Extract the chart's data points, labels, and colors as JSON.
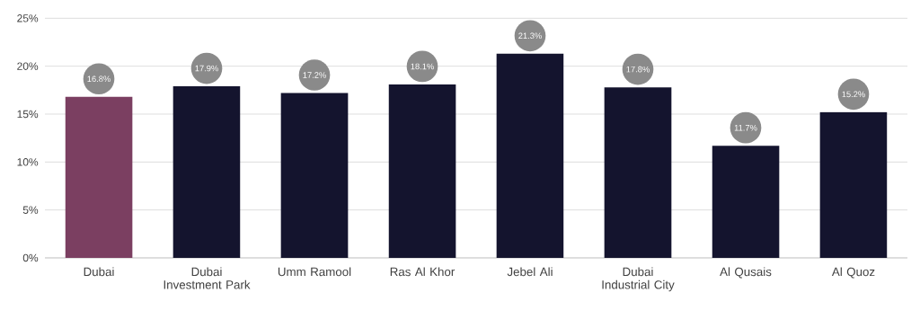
{
  "chart_data": {
    "type": "bar",
    "categories": [
      "Dubai",
      "Dubai Investment Park",
      "Umm Ramool",
      "Ras Al Khor",
      "Jebel Ali",
      "Dubai Industrial City",
      "Al Qusais",
      "Al Quoz"
    ],
    "values": [
      16.8,
      17.9,
      17.2,
      18.1,
      21.3,
      17.8,
      11.7,
      15.2
    ],
    "colors": [
      "#7b3f61",
      "#14142e",
      "#14142e",
      "#14142e",
      "#14142e",
      "#14142e",
      "#14142e",
      "#14142e"
    ],
    "value_labels": [
      "16.8%",
      "17.9%",
      "17.2%",
      "18.1%",
      "21.3%",
      "17.8%",
      "11.7%",
      "15.2%"
    ],
    "ylim": [
      0,
      25
    ],
    "yticks": [
      {
        "value": 0,
        "label": "0%"
      },
      {
        "value": 5,
        "label": "5%"
      },
      {
        "value": 10,
        "label": "10%"
      },
      {
        "value": 15,
        "label": "15%"
      },
      {
        "value": 20,
        "label": "20%"
      },
      {
        "value": 25,
        "label": "25%"
      }
    ],
    "grid": "y"
  }
}
